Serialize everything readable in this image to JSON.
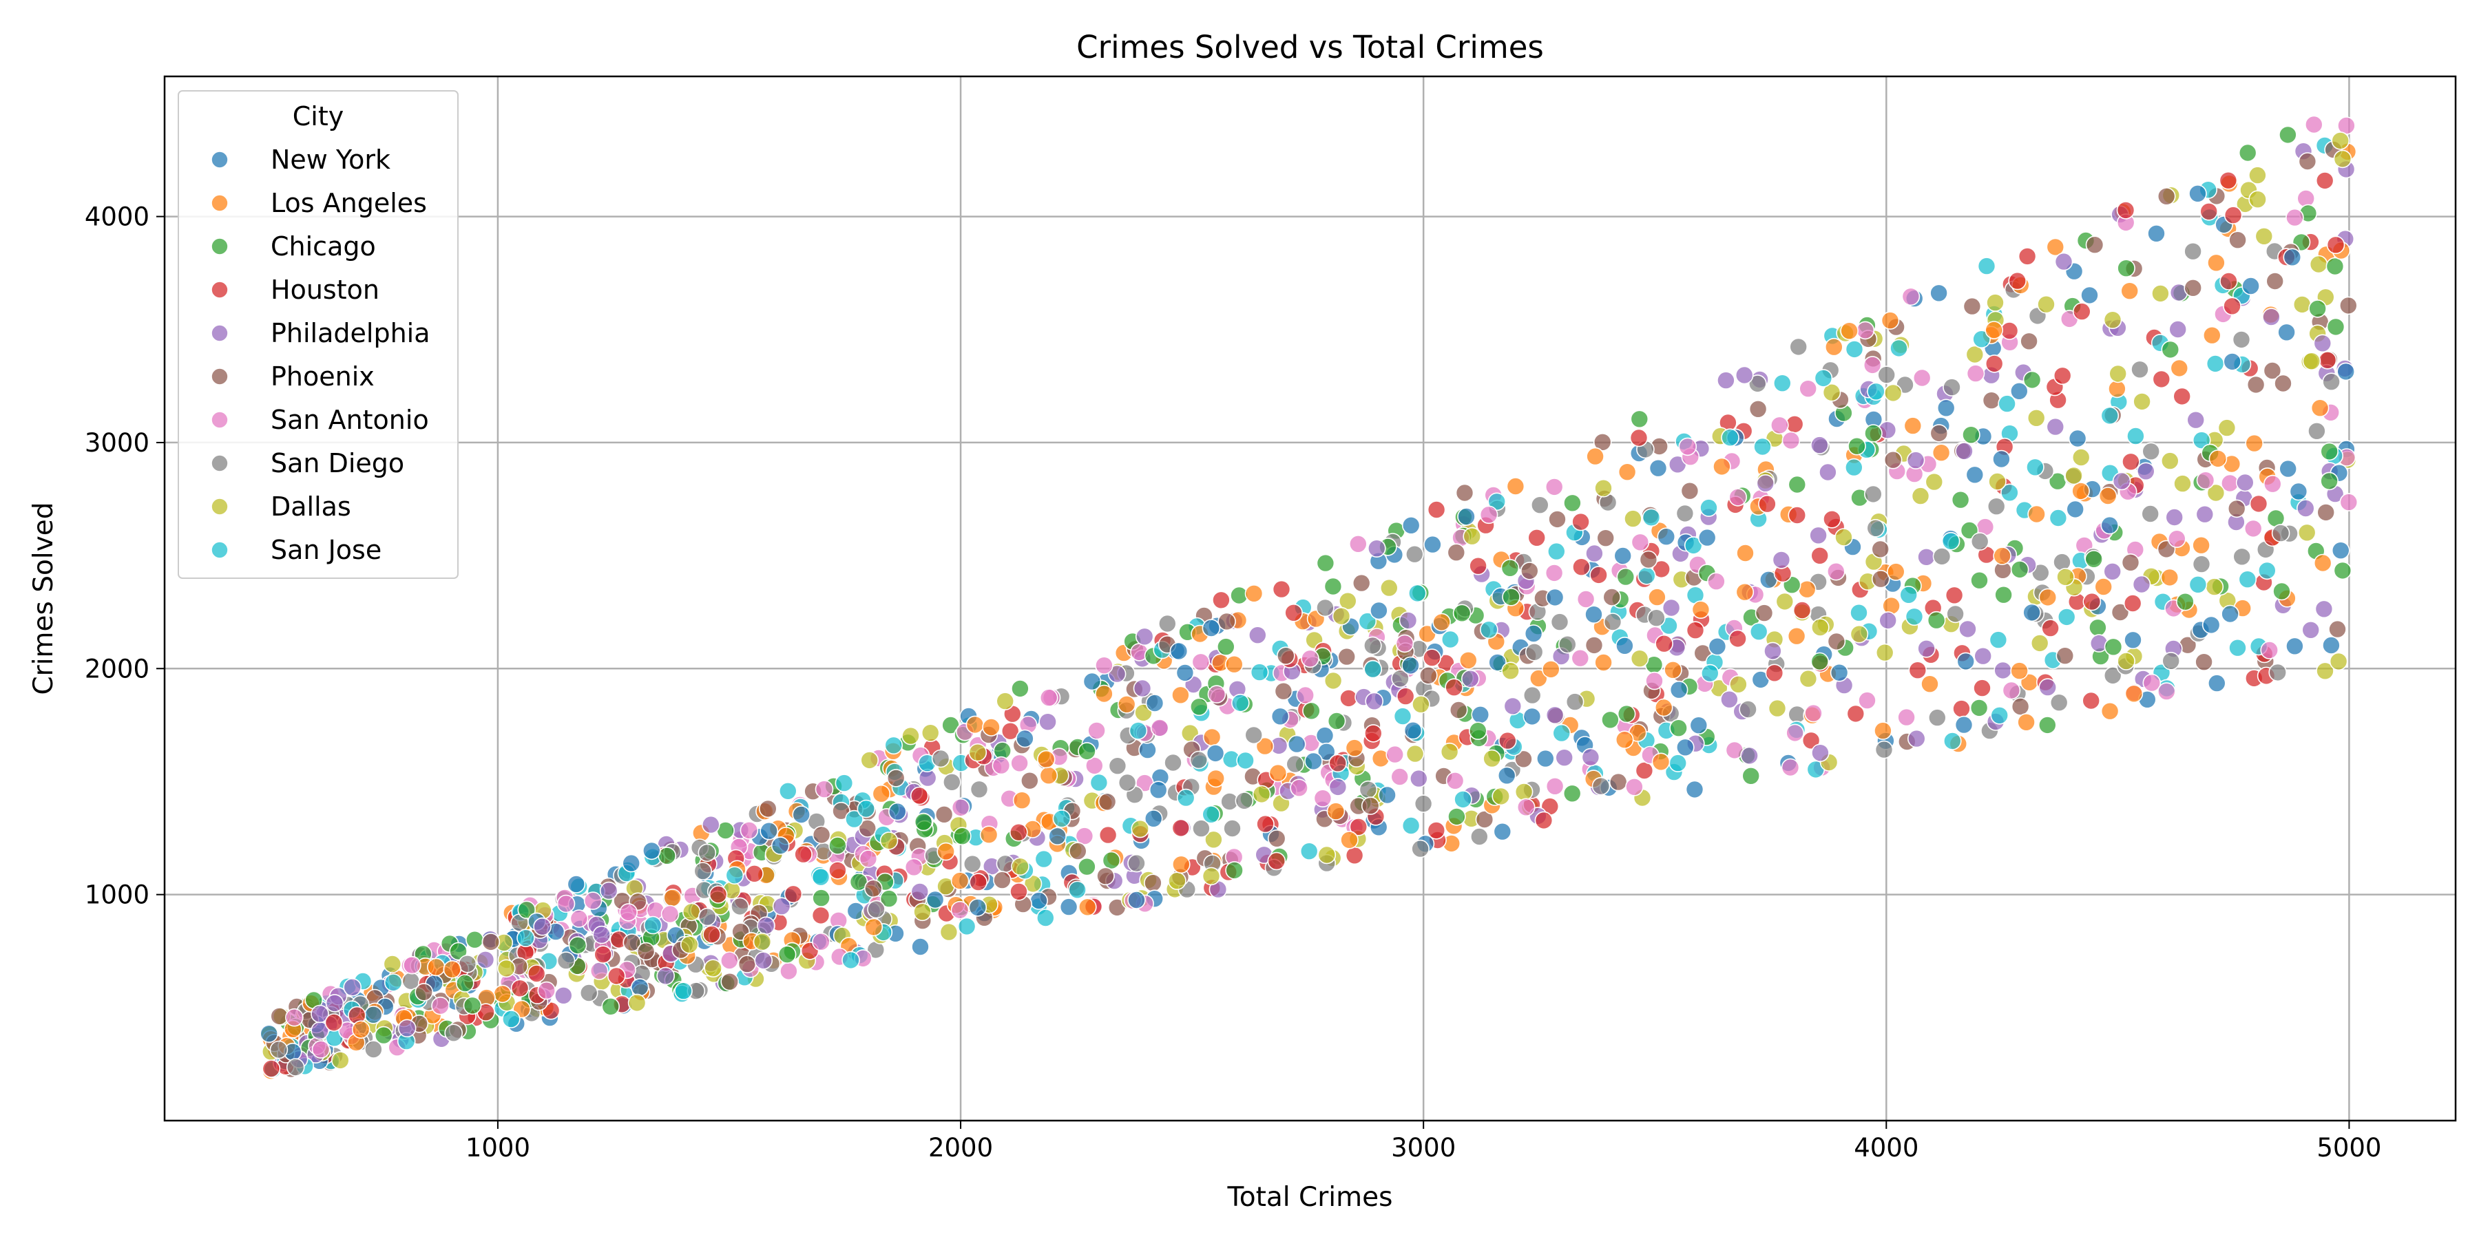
{
  "chart_data": {
    "type": "scatter",
    "title": "Crimes Solved vs Total Crimes",
    "xlabel": "Total Crimes",
    "ylabel": "Crimes Solved",
    "xlim": [
      280,
      5230
    ],
    "ylim": [
      0,
      4620
    ],
    "x_ticks": [
      1000,
      2000,
      3000,
      4000,
      5000
    ],
    "y_ticks": [
      1000,
      2000,
      3000,
      4000
    ],
    "grid": true,
    "legend_position": "top-left",
    "legend_title": "City",
    "point_model": {
      "x_range": [
        500,
        5000
      ],
      "solved_rate_range": [
        0.4,
        0.9
      ]
    },
    "series": [
      {
        "name": "New York",
        "color": "#1f77b4"
      },
      {
        "name": "Los Angeles",
        "color": "#ff7f0e"
      },
      {
        "name": "Chicago",
        "color": "#2ca02c"
      },
      {
        "name": "Houston",
        "color": "#d62728"
      },
      {
        "name": "Philadelphia",
        "color": "#9467bd"
      },
      {
        "name": "Phoenix",
        "color": "#8c564b"
      },
      {
        "name": "San Antonio",
        "color": "#e377c2"
      },
      {
        "name": "San Diego",
        "color": "#7f7f7f"
      },
      {
        "name": "Dallas",
        "color": "#bcbd22"
      },
      {
        "name": "San Jose",
        "color": "#17becf"
      }
    ]
  }
}
